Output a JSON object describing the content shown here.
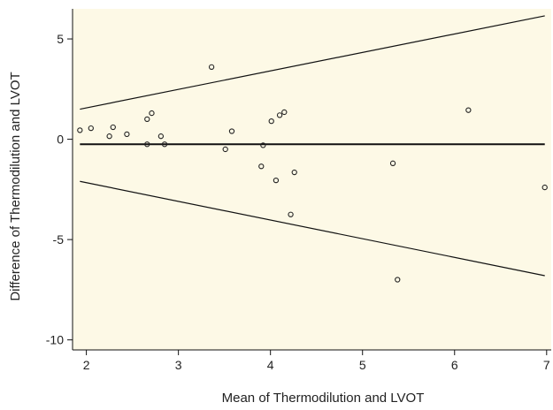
{
  "chart_data": {
    "type": "scatter",
    "title": "",
    "xlabel": "Mean of Thermodilution and LVOT",
    "ylabel": "Difference of Thermodilution and LVOT",
    "xlim": [
      1.85,
      7.05
    ],
    "ylim": [
      -10.5,
      6.5
    ],
    "x_ticks": [
      2,
      3,
      4,
      5,
      6,
      7
    ],
    "y_ticks": [
      5,
      0,
      -5,
      -10
    ],
    "grid": false,
    "plot_background": "#fdf9e6",
    "marker_color": "#222222",
    "points": [
      {
        "x": 1.93,
        "y": 0.45
      },
      {
        "x": 2.05,
        "y": 0.55
      },
      {
        "x": 2.25,
        "y": 0.15
      },
      {
        "x": 2.29,
        "y": 0.6
      },
      {
        "x": 2.44,
        "y": 0.25
      },
      {
        "x": 2.66,
        "y": 1.0
      },
      {
        "x": 2.66,
        "y": -0.25
      },
      {
        "x": 2.71,
        "y": 1.3
      },
      {
        "x": 2.81,
        "y": 0.15
      },
      {
        "x": 2.85,
        "y": -0.25
      },
      {
        "x": 3.36,
        "y": 3.6
      },
      {
        "x": 3.51,
        "y": -0.5
      },
      {
        "x": 3.58,
        "y": 0.4
      },
      {
        "x": 3.9,
        "y": -1.35
      },
      {
        "x": 3.92,
        "y": -0.3
      },
      {
        "x": 4.01,
        "y": 0.9
      },
      {
        "x": 4.06,
        "y": -2.05
      },
      {
        "x": 4.1,
        "y": 1.2
      },
      {
        "x": 4.15,
        "y": 1.35
      },
      {
        "x": 4.22,
        "y": -3.75
      },
      {
        "x": 4.26,
        "y": -1.65
      },
      {
        "x": 5.33,
        "y": -1.2
      },
      {
        "x": 5.38,
        "y": -7.0
      },
      {
        "x": 6.15,
        "y": 1.45
      },
      {
        "x": 6.98,
        "y": -2.4
      }
    ],
    "lines": [
      {
        "x1": 1.93,
        "y1": -0.25,
        "x2": 6.98,
        "y2": -0.25
      },
      {
        "x1": 1.93,
        "y1": 1.5,
        "x2": 6.98,
        "y2": 6.15
      },
      {
        "x1": 1.93,
        "y1": -2.1,
        "x2": 6.98,
        "y2": -6.8
      }
    ]
  }
}
